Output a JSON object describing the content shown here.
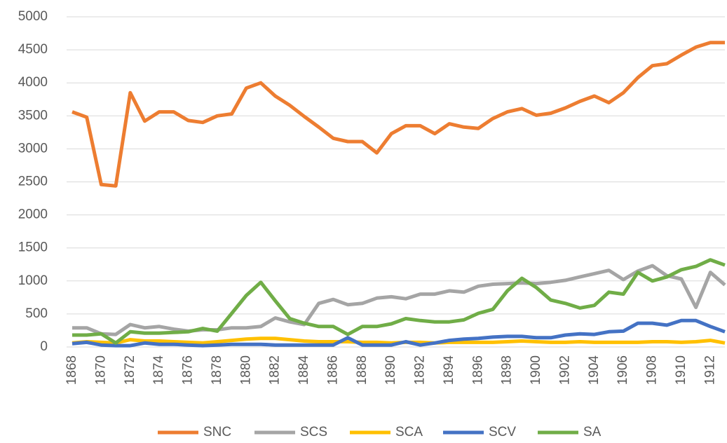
{
  "chart_data": {
    "type": "line",
    "x": [
      1868,
      1869,
      1870,
      1871,
      1872,
      1873,
      1874,
      1875,
      1876,
      1877,
      1878,
      1879,
      1880,
      1881,
      1882,
      1883,
      1884,
      1885,
      1886,
      1887,
      1888,
      1889,
      1890,
      1891,
      1892,
      1893,
      1894,
      1895,
      1896,
      1897,
      1898,
      1899,
      1900,
      1901,
      1902,
      1903,
      1904,
      1905,
      1906,
      1907,
      1908,
      1909,
      1910,
      1911,
      1912,
      1913
    ],
    "xlim": [
      1868,
      1913
    ],
    "xticks": [
      1868,
      1870,
      1872,
      1874,
      1876,
      1878,
      1880,
      1882,
      1884,
      1886,
      1888,
      1890,
      1892,
      1894,
      1896,
      1898,
      1900,
      1902,
      1904,
      1906,
      1908,
      1910,
      1912
    ],
    "ylim": [
      0,
      5000
    ],
    "yticks": [
      0,
      500,
      1000,
      1500,
      2000,
      2500,
      3000,
      3500,
      4000,
      4500,
      5000
    ],
    "grid": true,
    "legend": "bottom",
    "series": [
      {
        "name": "SNC",
        "color": "#ed7d31",
        "values": [
          3560,
          3480,
          2460,
          2440,
          3850,
          3420,
          3560,
          3560,
          3430,
          3400,
          3500,
          3530,
          3920,
          4000,
          3800,
          3660,
          3490,
          3330,
          3160,
          3110,
          3110,
          2940,
          3230,
          3350,
          3350,
          3230,
          3380,
          3330,
          3310,
          3460,
          3560,
          3610,
          3510,
          3540,
          3620,
          3720,
          3800,
          3700,
          3850,
          4080,
          4260,
          4290,
          4420,
          4540,
          4610,
          4610
        ]
      },
      {
        "name": "SCS",
        "color": "#a5a5a5",
        "values": [
          290,
          290,
          200,
          190,
          340,
          290,
          310,
          270,
          240,
          260,
          260,
          290,
          290,
          310,
          440,
          380,
          340,
          660,
          720,
          640,
          660,
          740,
          760,
          730,
          800,
          800,
          850,
          830,
          920,
          950,
          960,
          970,
          960,
          980,
          1010,
          1060,
          1110,
          1160,
          1020,
          1150,
          1230,
          1080,
          1030,
          600,
          1130,
          940
        ]
      },
      {
        "name": "SCA",
        "color": "#ffc000",
        "values": [
          60,
          80,
          70,
          60,
          110,
          90,
          90,
          80,
          70,
          60,
          80,
          100,
          120,
          130,
          130,
          110,
          90,
          80,
          80,
          80,
          70,
          70,
          60,
          70,
          70,
          60,
          70,
          70,
          70,
          70,
          80,
          90,
          80,
          70,
          70,
          80,
          70,
          70,
          70,
          70,
          80,
          80,
          70,
          80,
          100,
          60
        ]
      },
      {
        "name": "SCV",
        "color": "#4472c4",
        "values": [
          50,
          70,
          30,
          20,
          20,
          60,
          40,
          40,
          30,
          20,
          30,
          40,
          40,
          40,
          30,
          30,
          30,
          30,
          30,
          140,
          30,
          30,
          30,
          80,
          30,
          60,
          100,
          120,
          130,
          150,
          160,
          160,
          140,
          140,
          180,
          200,
          190,
          230,
          240,
          360,
          360,
          330,
          400,
          400,
          310,
          230
        ]
      },
      {
        "name": "SA",
        "color": "#70ad47",
        "values": [
          180,
          180,
          200,
          60,
          230,
          210,
          210,
          220,
          230,
          280,
          240,
          510,
          780,
          980,
          700,
          430,
          360,
          310,
          310,
          190,
          310,
          310,
          350,
          430,
          400,
          380,
          380,
          410,
          510,
          570,
          850,
          1040,
          900,
          710,
          660,
          590,
          630,
          830,
          800,
          1130,
          1000,
          1060,
          1170,
          1220,
          1320,
          1240
        ]
      }
    ]
  }
}
